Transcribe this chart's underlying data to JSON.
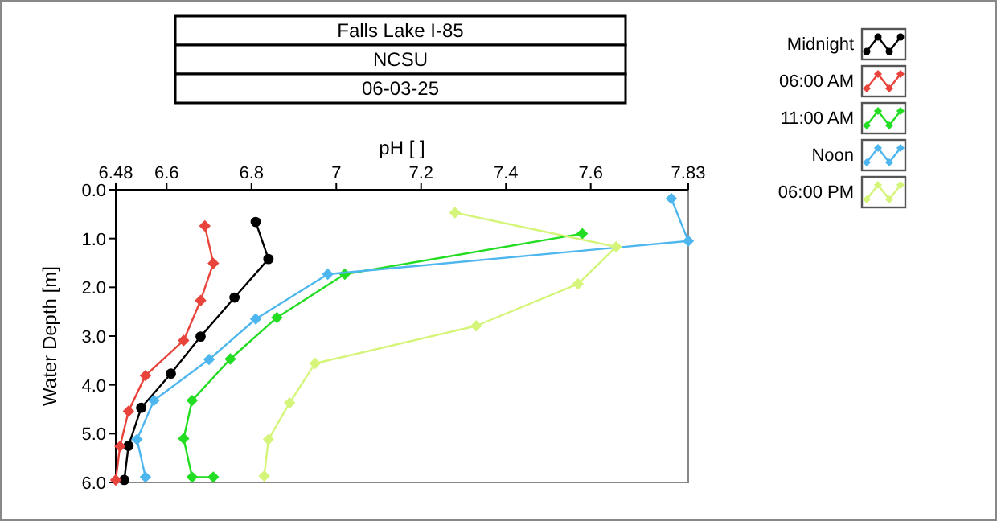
{
  "chart_data": {
    "type": "line",
    "title": "Falls Lake I-85",
    "subtitle": "NCSU",
    "annotations": [
      "06-03-25"
    ],
    "xlabel": "pH [ ]",
    "ylabel": "Water Depth [m]",
    "xlim": [
      6.48,
      7.83
    ],
    "xticks": [
      6.48,
      6.6,
      6.8,
      7,
      7.2,
      7.4,
      7.6,
      7.83
    ],
    "ylim": [
      6,
      0
    ],
    "yticks": [
      {
        "value": 0,
        "label": "0.0"
      },
      {
        "value": 1,
        "label": "1.0"
      },
      {
        "value": 2,
        "label": "2.0"
      },
      {
        "value": 3,
        "label": "3.0"
      },
      {
        "value": 4,
        "label": "4.0"
      },
      {
        "value": 5,
        "label": "5.0"
      },
      {
        "value": 6,
        "label": "6.0"
      }
    ],
    "legend": "top right",
    "marker": "diamond",
    "line_style": "solid",
    "series": [
      {
        "name": "Midnight",
        "color": "#000000",
        "marker": "circle",
        "x": [
          6.81,
          6.84,
          6.76,
          6.68,
          6.61,
          6.54,
          6.51,
          6.5
        ],
        "values": [
          0.66,
          1.42,
          2.21,
          3.01,
          3.77,
          4.47,
          5.25,
          5.95
        ]
      },
      {
        "name": "06:00 AM",
        "color": "#e8443c",
        "x": [
          6.69,
          6.71,
          6.68,
          6.64,
          6.55,
          6.51,
          6.49,
          6.48
        ],
        "values": [
          0.74,
          1.51,
          2.27,
          3.09,
          3.81,
          4.54,
          5.26,
          5.95
        ]
      },
      {
        "name": "11:00 AM",
        "color": "#22dd22",
        "x": [
          7.58,
          7.02,
          6.86,
          6.75,
          6.66,
          6.64,
          6.66,
          6.71
        ],
        "values": [
          0.9,
          1.73,
          2.62,
          3.47,
          4.32,
          5.1,
          5.89,
          5.89
        ]
      },
      {
        "name": "Noon",
        "color": "#4db6ef",
        "x": [
          7.79,
          7.83,
          6.98,
          6.81,
          6.7,
          6.57,
          6.53,
          6.55
        ],
        "values": [
          0.18,
          1.05,
          1.73,
          2.65,
          3.48,
          4.32,
          5.12,
          5.89
        ]
      },
      {
        "name": "06:00 PM",
        "color": "#d4f57a",
        "x": [
          7.28,
          7.66,
          7.57,
          7.33,
          6.95,
          6.89,
          6.84,
          6.83
        ],
        "values": [
          0.47,
          1.17,
          1.93,
          2.79,
          3.56,
          4.37,
          5.12,
          5.87
        ]
      }
    ]
  }
}
